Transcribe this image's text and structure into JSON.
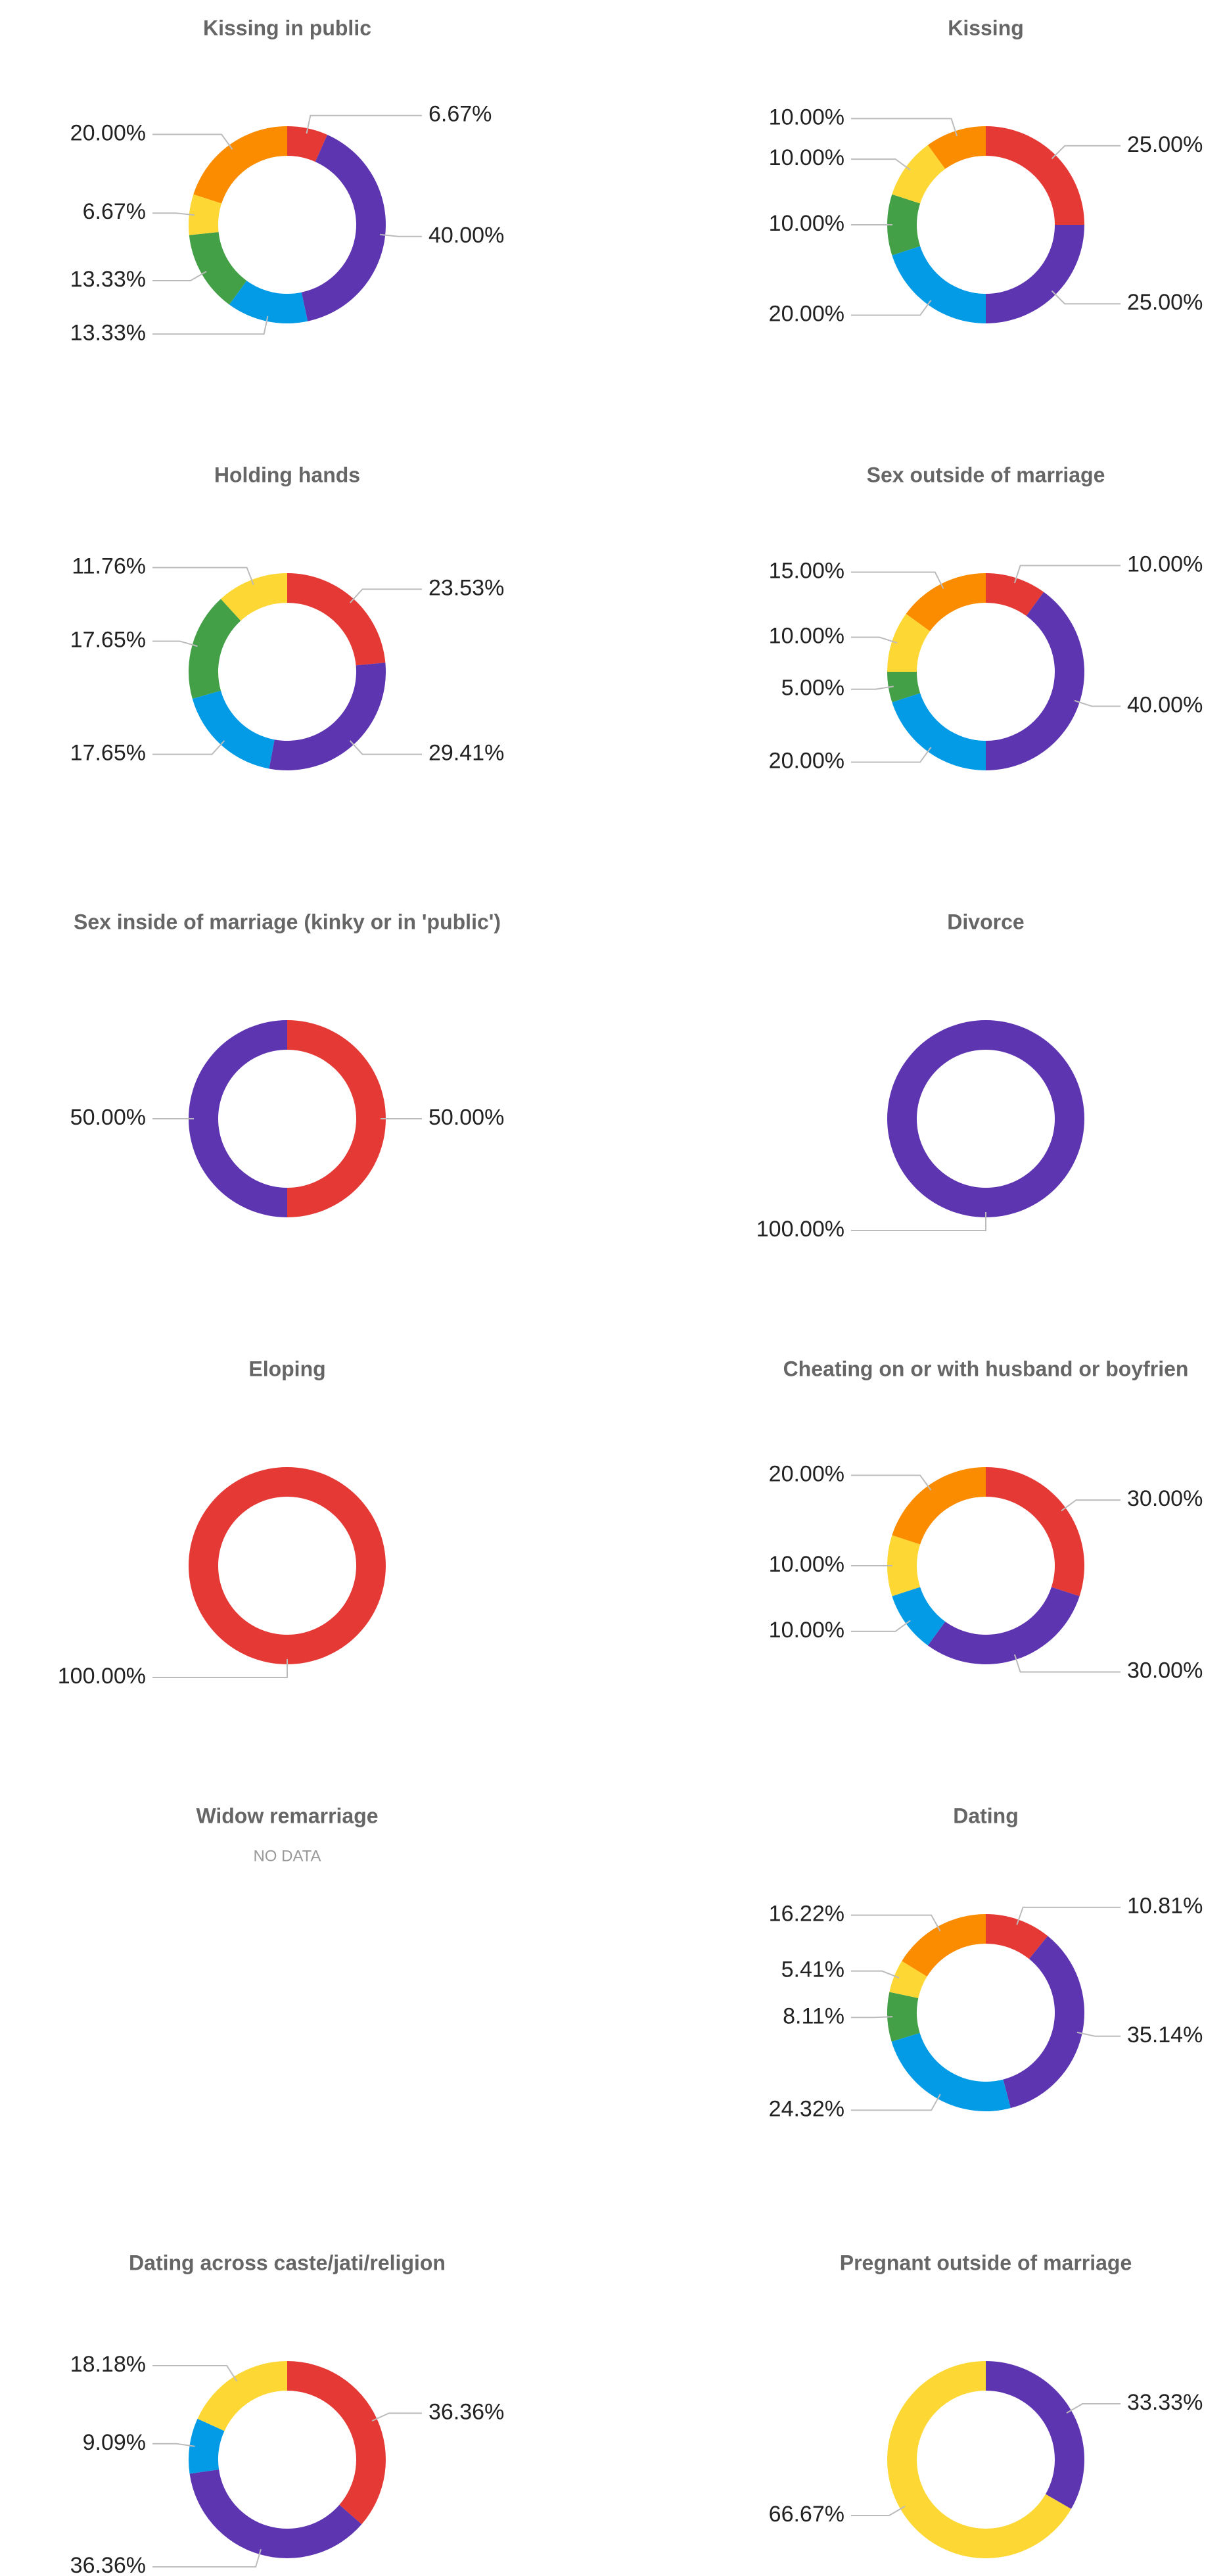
{
  "chart_data": [
    {
      "type": "donut",
      "title": "Kissing in public",
      "values": [
        6.67,
        40,
        13.33,
        13.33,
        6.67,
        20
      ],
      "value_labels": [
        "6.67%",
        "40.00%",
        "13.33%",
        "13.33%",
        "6.67%",
        "20.00%"
      ],
      "colors": [
        "#e53935",
        "#5e35b1",
        "#039be5",
        "#43a047",
        "#fdd835",
        "#fb8c00"
      ]
    },
    {
      "type": "donut",
      "title": "Kissing",
      "values": [
        25,
        25,
        20,
        10,
        10,
        10
      ],
      "value_labels": [
        "25.00%",
        "25.00%",
        "20.00%",
        "10.00%",
        "10.00%",
        "10.00%"
      ],
      "colors": [
        "#e53935",
        "#5e35b1",
        "#039be5",
        "#43a047",
        "#fdd835",
        "#fb8c00"
      ]
    },
    {
      "type": "donut",
      "title": "Holding hands",
      "values": [
        23.53,
        29.41,
        17.65,
        17.65,
        11.76
      ],
      "value_labels": [
        "23.53%",
        "29.41%",
        "17.65%",
        "17.65%",
        "11.76%"
      ],
      "colors": [
        "#e53935",
        "#5e35b1",
        "#039be5",
        "#43a047",
        "#fdd835"
      ]
    },
    {
      "type": "donut",
      "title": "Sex outside of marriage",
      "values": [
        10,
        40,
        20,
        5,
        10,
        15
      ],
      "value_labels": [
        "10.00%",
        "40.00%",
        "20.00%",
        "5.00%",
        "10.00%",
        "15.00%"
      ],
      "colors": [
        "#e53935",
        "#5e35b1",
        "#039be5",
        "#43a047",
        "#fdd835",
        "#fb8c00"
      ]
    },
    {
      "type": "donut",
      "title": "Sex inside of marriage (kinky or in 'public')",
      "values": [
        50,
        50
      ],
      "value_labels": [
        "50.00%",
        "50.00%"
      ],
      "colors": [
        "#e53935",
        "#5e35b1"
      ]
    },
    {
      "type": "donut",
      "title": "Divorce",
      "values": [
        100
      ],
      "value_labels": [
        "100.00%"
      ],
      "colors": [
        "#5e35b1"
      ]
    },
    {
      "type": "donut",
      "title": "Eloping",
      "values": [
        100
      ],
      "value_labels": [
        "100.00%"
      ],
      "colors": [
        "#e53935"
      ]
    },
    {
      "type": "donut",
      "title": "Cheating on or with husband or boyfrien",
      "values": [
        30,
        30,
        10,
        10,
        20
      ],
      "value_labels": [
        "30.00%",
        "30.00%",
        "10.00%",
        "10.00%",
        "20.00%"
      ],
      "colors": [
        "#e53935",
        "#5e35b1",
        "#039be5",
        "#fdd835",
        "#fb8c00"
      ]
    },
    {
      "type": "donut",
      "title": "Widow remarriage",
      "no_data": "NO DATA",
      "values": [],
      "value_labels": [],
      "colors": []
    },
    {
      "type": "donut",
      "title": "Dating",
      "values": [
        10.81,
        35.14,
        24.32,
        8.11,
        5.41,
        16.22
      ],
      "value_labels": [
        "10.81%",
        "35.14%",
        "24.32%",
        "8.11%",
        "5.41%",
        "16.22%"
      ],
      "colors": [
        "#e53935",
        "#5e35b1",
        "#039be5",
        "#43a047",
        "#fdd835",
        "#fb8c00"
      ]
    },
    {
      "type": "donut",
      "title": "Dating across caste/jati/religion",
      "values": [
        36.36,
        36.36,
        9.09,
        18.18
      ],
      "value_labels": [
        "36.36%",
        "36.36%",
        "9.09%",
        "18.18%"
      ],
      "colors": [
        "#e53935",
        "#5e35b1",
        "#039be5",
        "#fdd835"
      ]
    },
    {
      "type": "donut",
      "title": "Pregnant outside of marriage",
      "values": [
        33.33,
        66.67
      ],
      "value_labels": [
        "33.33%",
        "66.67%"
      ],
      "colors": [
        "#5e35b1",
        "#fdd835"
      ]
    }
  ]
}
